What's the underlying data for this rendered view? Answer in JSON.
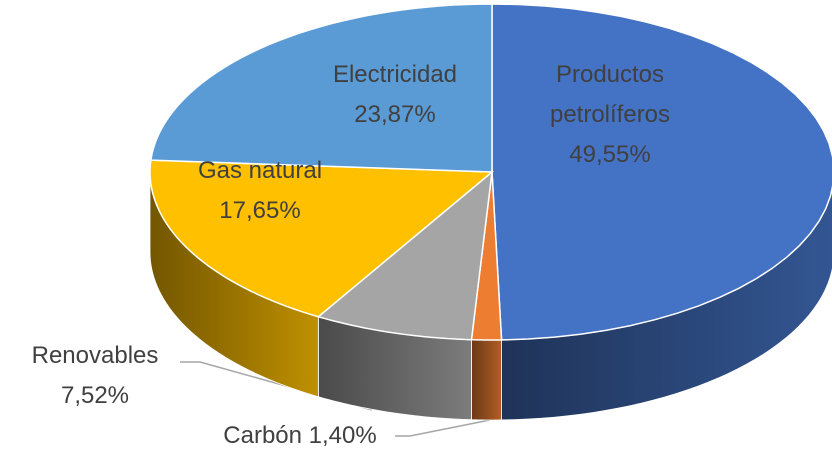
{
  "chart_data": {
    "type": "pie",
    "categories": [
      "Productos petrolíferos",
      "Carbón",
      "Renovables",
      "Gas natural",
      "Electricidad"
    ],
    "values": [
      49.55,
      1.4,
      7.52,
      17.65,
      23.87
    ],
    "value_labels": [
      "49,55%",
      "1,40%",
      "7,52%",
      "17,65%",
      "23,87%"
    ],
    "colors": [
      "#4472c4",
      "#ed7d31",
      "#a5a5a5",
      "#ffc000",
      "#5b9bd5"
    ]
  }
}
